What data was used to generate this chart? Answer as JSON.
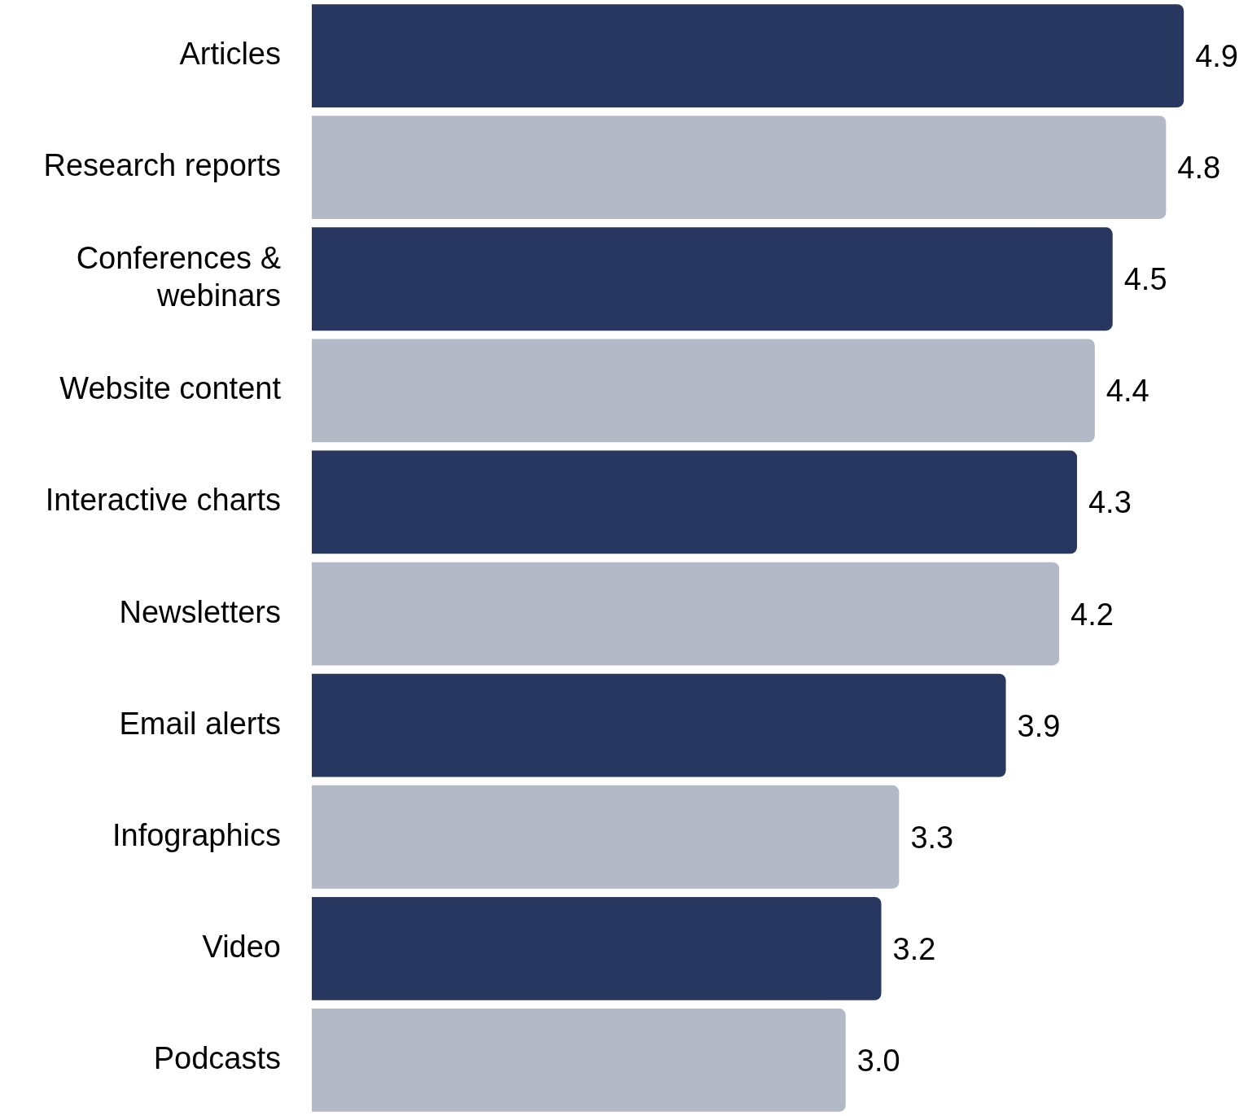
{
  "chart_data": {
    "type": "bar",
    "orientation": "horizontal",
    "categories": [
      "Articles",
      "Research reports",
      "Conferences & webinars",
      "Website content",
      "Interactive charts",
      "Newsletters",
      "Email alerts",
      "Infographics",
      "Video",
      "Podcasts"
    ],
    "values": [
      4.9,
      4.8,
      4.5,
      4.4,
      4.3,
      4.2,
      3.9,
      3.3,
      3.2,
      3.0
    ],
    "value_labels": [
      "4.9",
      "4.8",
      "4.5",
      "4.4",
      "4.3",
      "4.2",
      "3.9",
      "3.3",
      "3.2",
      "3.0"
    ],
    "colors": [
      "#283760",
      "#b3b9c7",
      "#283760",
      "#b3b9c7",
      "#283760",
      "#b3b9c7",
      "#283760",
      "#b3b9c7",
      "#283760",
      "#b3b9c7"
    ],
    "tick_labels": "y"
  }
}
